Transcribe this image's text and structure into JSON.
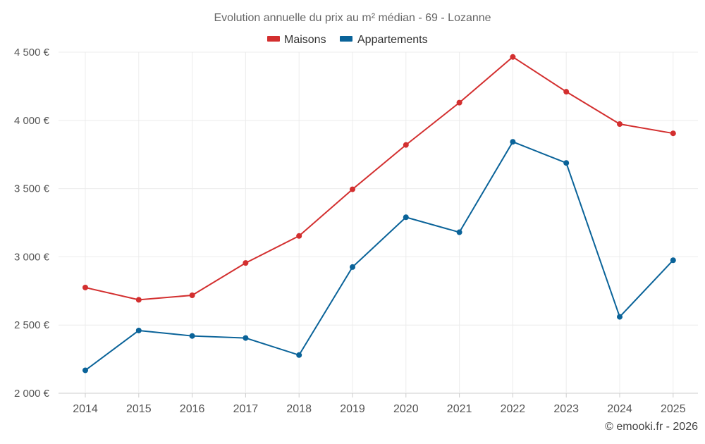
{
  "chart_data": {
    "type": "line",
    "title": "Evolution annuelle du prix au m² médian - 69 - Lozanne",
    "categories": [
      "2014",
      "2015",
      "2016",
      "2017",
      "2018",
      "2019",
      "2020",
      "2021",
      "2022",
      "2023",
      "2024",
      "2025"
    ],
    "series": [
      {
        "name": "Maisons",
        "color": "#d32f2f",
        "values": [
          2775,
          2685,
          2718,
          2955,
          3153,
          3495,
          3820,
          4130,
          4465,
          4210,
          3973,
          3905
        ]
      },
      {
        "name": "Appartements",
        "color": "#0a6399",
        "values": [
          2168,
          2460,
          2420,
          2405,
          2280,
          2925,
          3290,
          3180,
          3843,
          3688,
          2560,
          2975
        ]
      }
    ],
    "ylim": [
      2000,
      4500
    ],
    "yticks": [
      2000,
      2500,
      3000,
      3500,
      4000,
      4500
    ],
    "ytick_labels": [
      "2 000 €",
      "2 500 €",
      "3 000 €",
      "3 500 €",
      "4 000 €",
      "4 500 €"
    ],
    "xlabel": "",
    "ylabel": "",
    "grid": true,
    "legend_position": "top-center",
    "credit": "© emooki.fr - 2026"
  }
}
